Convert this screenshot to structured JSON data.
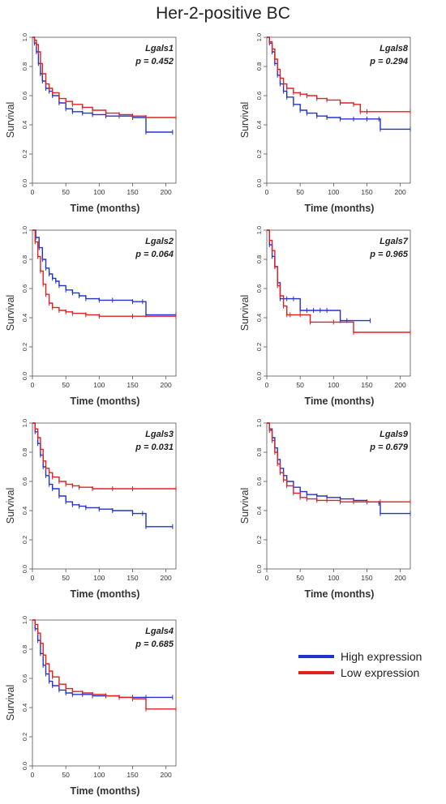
{
  "title": "Her-2-positive BC",
  "legend": {
    "items": [
      {
        "label": "High expression",
        "color": "#2233cc"
      },
      {
        "label": "Low expression",
        "color": "#dd2222"
      }
    ]
  },
  "chart_data": [
    {
      "type": "line",
      "gene": "Lgals1",
      "pvalue": "p = 0.452",
      "xlabel": "Time (months)",
      "ylabel": "Survival",
      "xlim": [
        0,
        215
      ],
      "ylim": [
        0,
        1
      ],
      "xticks": [
        "0",
        "50",
        "100",
        "150",
        "200"
      ],
      "yticks": [
        "0.0",
        "0.2",
        "0.4",
        "0.6",
        "0.8",
        "1.0"
      ],
      "series": [
        {
          "name": "High expression",
          "color": "#2233cc",
          "x": [
            0,
            3,
            6,
            9,
            12,
            15,
            20,
            25,
            30,
            40,
            50,
            60,
            75,
            90,
            110,
            130,
            150,
            170,
            170,
            210
          ],
          "y": [
            1,
            0.96,
            0.9,
            0.82,
            0.75,
            0.7,
            0.65,
            0.63,
            0.6,
            0.55,
            0.51,
            0.49,
            0.48,
            0.47,
            0.46,
            0.46,
            0.45,
            0.45,
            0.35,
            0.35
          ]
        },
        {
          "name": "Low expression",
          "color": "#dd2222",
          "x": [
            0,
            3,
            6,
            9,
            12,
            15,
            20,
            25,
            30,
            40,
            50,
            60,
            75,
            90,
            110,
            130,
            150,
            170,
            215
          ],
          "y": [
            1,
            0.98,
            0.95,
            0.9,
            0.82,
            0.75,
            0.68,
            0.65,
            0.62,
            0.58,
            0.56,
            0.54,
            0.52,
            0.5,
            0.48,
            0.47,
            0.46,
            0.45,
            0.45
          ]
        }
      ]
    },
    {
      "type": "line",
      "gene": "Lgals8",
      "pvalue": "p = 0.294",
      "xlabel": "Time (months)",
      "ylabel": "Survival",
      "xlim": [
        0,
        215
      ],
      "ylim": [
        0,
        1
      ],
      "xticks": [
        "0",
        "50",
        "100",
        "150",
        "200"
      ],
      "yticks": [
        "0.0",
        "0.2",
        "0.4",
        "0.6",
        "0.8",
        "1.0"
      ],
      "series": [
        {
          "name": "High expression",
          "color": "#2233cc",
          "x": [
            0,
            4,
            8,
            12,
            16,
            20,
            25,
            30,
            40,
            50,
            60,
            75,
            90,
            110,
            130,
            150,
            168,
            170,
            215
          ],
          "y": [
            1,
            0.96,
            0.9,
            0.82,
            0.74,
            0.68,
            0.63,
            0.59,
            0.54,
            0.5,
            0.48,
            0.46,
            0.45,
            0.44,
            0.44,
            0.44,
            0.44,
            0.37,
            0.37
          ]
        },
        {
          "name": "Low expression",
          "color": "#dd2222",
          "x": [
            0,
            4,
            8,
            12,
            16,
            20,
            25,
            30,
            40,
            50,
            60,
            75,
            90,
            110,
            130,
            140,
            150,
            215
          ],
          "y": [
            1,
            0.97,
            0.92,
            0.85,
            0.78,
            0.72,
            0.68,
            0.65,
            0.62,
            0.61,
            0.6,
            0.58,
            0.57,
            0.55,
            0.54,
            0.49,
            0.49,
            0.49
          ]
        }
      ]
    },
    {
      "type": "line",
      "gene": "Lgals2",
      "pvalue": "p = 0.064",
      "xlabel": "Time (months)",
      "ylabel": "Survival",
      "xlim": [
        0,
        215
      ],
      "ylim": [
        0,
        1
      ],
      "xticks": [
        "0",
        "50",
        "100",
        "150",
        "200"
      ],
      "yticks": [
        "0.0",
        "0.2",
        "0.4",
        "0.6",
        "0.8",
        "1.0"
      ],
      "series": [
        {
          "name": "High expression",
          "color": "#2233cc",
          "x": [
            0,
            5,
            10,
            15,
            20,
            25,
            30,
            35,
            40,
            50,
            60,
            70,
            80,
            100,
            120,
            150,
            165,
            170,
            215
          ],
          "y": [
            1,
            0.95,
            0.88,
            0.8,
            0.74,
            0.7,
            0.67,
            0.65,
            0.62,
            0.59,
            0.57,
            0.55,
            0.53,
            0.52,
            0.52,
            0.51,
            0.51,
            0.42,
            0.42
          ]
        },
        {
          "name": "Low expression",
          "color": "#dd2222",
          "x": [
            0,
            4,
            8,
            12,
            16,
            20,
            25,
            30,
            40,
            50,
            60,
            80,
            100,
            150,
            215
          ],
          "y": [
            1,
            0.92,
            0.82,
            0.72,
            0.63,
            0.56,
            0.5,
            0.47,
            0.45,
            0.44,
            0.43,
            0.42,
            0.41,
            0.41,
            0.41
          ]
        }
      ]
    },
    {
      "type": "line",
      "gene": "Lgals7",
      "pvalue": "p = 0.965",
      "xlabel": "Time (months)",
      "ylabel": "Survival",
      "xlim": [
        0,
        215
      ],
      "ylim": [
        0,
        1
      ],
      "xticks": [
        "0",
        "50",
        "100",
        "150",
        "200"
      ],
      "yticks": [
        "0.0",
        "0.2",
        "0.4",
        "0.6",
        "0.8",
        "1.0"
      ],
      "series": [
        {
          "name": "High expression",
          "color": "#2233cc",
          "x": [
            0,
            4,
            8,
            12,
            16,
            20,
            25,
            30,
            40,
            50,
            60,
            70,
            80,
            90,
            110,
            120,
            155
          ],
          "y": [
            1,
            0.9,
            0.82,
            0.75,
            0.64,
            0.53,
            0.53,
            0.53,
            0.53,
            0.45,
            0.45,
            0.45,
            0.45,
            0.45,
            0.38,
            0.38,
            0.38
          ]
        },
        {
          "name": "Low expression",
          "color": "#dd2222",
          "x": [
            0,
            4,
            8,
            12,
            16,
            20,
            25,
            30,
            35,
            50,
            65,
            100,
            130,
            215
          ],
          "y": [
            1,
            0.93,
            0.86,
            0.75,
            0.62,
            0.55,
            0.48,
            0.42,
            0.42,
            0.42,
            0.37,
            0.37,
            0.3,
            0.3
          ]
        }
      ]
    },
    {
      "type": "line",
      "gene": "Lgals3",
      "pvalue": "p = 0.031",
      "xlabel": "Time (months)",
      "ylabel": "Survival",
      "xlim": [
        0,
        215
      ],
      "ylim": [
        0,
        1
      ],
      "xticks": [
        "0",
        "50",
        "100",
        "150",
        "200"
      ],
      "yticks": [
        "0.0",
        "0.2",
        "0.4",
        "0.6",
        "0.8",
        "1.0"
      ],
      "series": [
        {
          "name": "High expression",
          "color": "#2233cc",
          "x": [
            0,
            4,
            8,
            12,
            16,
            20,
            25,
            30,
            40,
            50,
            60,
            70,
            80,
            100,
            120,
            150,
            165,
            170,
            210
          ],
          "y": [
            1,
            0.94,
            0.86,
            0.78,
            0.7,
            0.64,
            0.58,
            0.55,
            0.5,
            0.46,
            0.44,
            0.43,
            0.42,
            0.41,
            0.4,
            0.38,
            0.38,
            0.29,
            0.29
          ]
        },
        {
          "name": "Low expression",
          "color": "#dd2222",
          "x": [
            0,
            4,
            8,
            12,
            16,
            20,
            25,
            30,
            40,
            50,
            60,
            70,
            90,
            120,
            150,
            215
          ],
          "y": [
            1,
            0.96,
            0.9,
            0.82,
            0.74,
            0.69,
            0.66,
            0.63,
            0.6,
            0.58,
            0.57,
            0.56,
            0.55,
            0.55,
            0.55,
            0.55
          ]
        }
      ]
    },
    {
      "type": "line",
      "gene": "Lgals9",
      "pvalue": "p = 0.679",
      "xlabel": "Time (months)",
      "ylabel": "Survival",
      "xlim": [
        0,
        215
      ],
      "ylim": [
        0,
        1
      ],
      "xticks": [
        "0",
        "50",
        "100",
        "150",
        "200"
      ],
      "yticks": [
        "0.0",
        "0.2",
        "0.4",
        "0.6",
        "0.8",
        "1.0"
      ],
      "series": [
        {
          "name": "High expression",
          "color": "#2233cc",
          "x": [
            0,
            4,
            8,
            12,
            16,
            20,
            25,
            30,
            40,
            50,
            60,
            75,
            90,
            110,
            130,
            150,
            168,
            170,
            215
          ],
          "y": [
            1,
            0.96,
            0.9,
            0.83,
            0.75,
            0.69,
            0.64,
            0.6,
            0.56,
            0.53,
            0.51,
            0.5,
            0.49,
            0.48,
            0.47,
            0.46,
            0.45,
            0.38,
            0.38
          ]
        },
        {
          "name": "Low expression",
          "color": "#dd2222",
          "x": [
            0,
            4,
            8,
            12,
            16,
            20,
            25,
            30,
            40,
            50,
            60,
            75,
            90,
            110,
            130,
            150,
            170,
            215
          ],
          "y": [
            1,
            0.95,
            0.88,
            0.8,
            0.72,
            0.66,
            0.61,
            0.57,
            0.52,
            0.49,
            0.48,
            0.47,
            0.47,
            0.46,
            0.46,
            0.46,
            0.46,
            0.46
          ]
        }
      ]
    },
    {
      "type": "line",
      "gene": "Lgals4",
      "pvalue": "p = 0.685",
      "xlabel": "Time (months)",
      "ylabel": "Survival",
      "xlim": [
        0,
        215
      ],
      "ylim": [
        0,
        1
      ],
      "xticks": [
        "0",
        "50",
        "100",
        "150",
        "200"
      ],
      "yticks": [
        "0.0",
        "0.2",
        "0.4",
        "0.6",
        "0.8",
        "1.0"
      ],
      "series": [
        {
          "name": "High expression",
          "color": "#2233cc",
          "x": [
            0,
            4,
            8,
            12,
            16,
            20,
            25,
            30,
            40,
            50,
            60,
            75,
            90,
            110,
            130,
            150,
            170,
            210
          ],
          "y": [
            1,
            0.94,
            0.86,
            0.77,
            0.69,
            0.63,
            0.58,
            0.55,
            0.52,
            0.5,
            0.49,
            0.49,
            0.48,
            0.48,
            0.47,
            0.47,
            0.47,
            0.47
          ]
        },
        {
          "name": "Low expression",
          "color": "#dd2222",
          "x": [
            0,
            4,
            8,
            12,
            16,
            20,
            25,
            30,
            40,
            50,
            60,
            75,
            90,
            110,
            130,
            150,
            170,
            170,
            215
          ],
          "y": [
            1,
            0.97,
            0.91,
            0.84,
            0.76,
            0.7,
            0.65,
            0.61,
            0.56,
            0.53,
            0.51,
            0.5,
            0.49,
            0.48,
            0.47,
            0.46,
            0.45,
            0.39,
            0.39
          ]
        }
      ]
    }
  ]
}
